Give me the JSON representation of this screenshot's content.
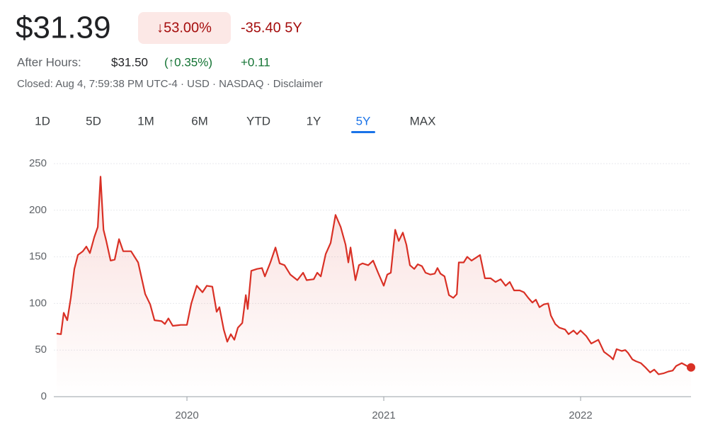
{
  "header": {
    "price": "$31.39",
    "change_pct": "↓53.00%",
    "change_abs": "-35.40 5Y",
    "after_hours_label": "After Hours:",
    "after_hours_price": "$31.50",
    "after_hours_pct": "(↑0.35%)",
    "after_hours_change": "+0.11",
    "status": "Closed: Aug 4, 7:59:38 PM UTC-4 · USD · NASDAQ · Disclaimer"
  },
  "tabs": [
    "1D",
    "5D",
    "1M",
    "6M",
    "YTD",
    "1Y",
    "5Y",
    "MAX"
  ],
  "active_tab": 6,
  "chart_data": {
    "type": "line",
    "color": "#d93025",
    "grid": true,
    "xlim": [
      2019.338,
      2022.561
    ],
    "xticks": [
      2020,
      2021,
      2022
    ],
    "ylim": [
      0,
      250
    ],
    "yticks": [
      0,
      50,
      100,
      150,
      200,
      250
    ],
    "x": [
      2019.338,
      2019.36,
      2019.374,
      2019.392,
      2019.41,
      2019.428,
      2019.446,
      2019.471,
      2019.489,
      2019.507,
      2019.529,
      2019.547,
      2019.561,
      2019.576,
      2019.59,
      2019.612,
      2019.633,
      2019.655,
      2019.676,
      2019.716,
      2019.752,
      2019.788,
      2019.813,
      2019.835,
      2019.871,
      2019.888,
      2019.906,
      2019.928,
      2019.968,
      2020.0,
      2020.022,
      2020.05,
      2020.079,
      2020.101,
      2020.129,
      2020.151,
      2020.165,
      2020.187,
      2020.205,
      2020.223,
      2020.241,
      2020.259,
      2020.281,
      2020.299,
      2020.309,
      2020.327,
      2020.356,
      2020.381,
      2020.396,
      2020.424,
      2020.45,
      2020.471,
      2020.496,
      2020.525,
      2020.561,
      2020.59,
      2020.608,
      2020.644,
      2020.662,
      2020.68,
      2020.705,
      2020.73,
      2020.755,
      2020.781,
      2020.806,
      2020.82,
      2020.831,
      2020.856,
      2020.874,
      2020.892,
      2020.921,
      2020.946,
      2020.971,
      2021.0,
      2021.018,
      2021.036,
      2021.058,
      2021.076,
      2021.097,
      2021.115,
      2021.133,
      2021.155,
      2021.173,
      2021.194,
      2021.212,
      2021.237,
      2021.259,
      2021.273,
      2021.288,
      2021.309,
      2021.331,
      2021.353,
      2021.371,
      2021.381,
      2021.406,
      2021.424,
      2021.446,
      2021.468,
      2021.489,
      2021.514,
      2021.543,
      2021.568,
      2021.594,
      2021.619,
      2021.64,
      2021.662,
      2021.691,
      2021.712,
      2021.734,
      2021.755,
      2021.773,
      2021.791,
      2021.813,
      2021.835,
      2021.849,
      2021.871,
      2021.892,
      2021.921,
      2021.939,
      2021.964,
      2021.982,
      2022.0,
      2022.029,
      2022.054,
      2022.09,
      2022.119,
      2022.151,
      2022.165,
      2022.183,
      2022.209,
      2022.227,
      2022.241,
      2022.263,
      2022.281,
      2022.306,
      2022.331,
      2022.353,
      2022.374,
      2022.396,
      2022.421,
      2022.446,
      2022.468,
      2022.486,
      2022.514,
      2022.54,
      2022.561
    ],
    "values": [
      67.6,
      67,
      90,
      82,
      106,
      137,
      152,
      156,
      161,
      154,
      171,
      182,
      236,
      179,
      167,
      146,
      147,
      169,
      156,
      156,
      144,
      110,
      99,
      82,
      81,
      78,
      84,
      76,
      77,
      77,
      100,
      119,
      112,
      119,
      118,
      91,
      96,
      72,
      59,
      67,
      61,
      74,
      79,
      109,
      94,
      135,
      137,
      138,
      129,
      144,
      160,
      143,
      141,
      131,
      125,
      133,
      125,
      126,
      133,
      129,
      153,
      165,
      195,
      182,
      163,
      144,
      160,
      125,
      141,
      143,
      141,
      146,
      133,
      119,
      131,
      133,
      179,
      167,
      176,
      163,
      141,
      137,
      142,
      140,
      133,
      131,
      132,
      138,
      132,
      129,
      109,
      106,
      110,
      144,
      144,
      150,
      146,
      149,
      152,
      127,
      127,
      123,
      126,
      119,
      123,
      114,
      114,
      112,
      106,
      101,
      104,
      96,
      99,
      100,
      87,
      78,
      74,
      72,
      67,
      71,
      67,
      71,
      65,
      57,
      61,
      48,
      43,
      40,
      51,
      49,
      50,
      47,
      40,
      38,
      36,
      31,
      26,
      29,
      24,
      25,
      27,
      28,
      33,
      36,
      33,
      31.39
    ]
  }
}
